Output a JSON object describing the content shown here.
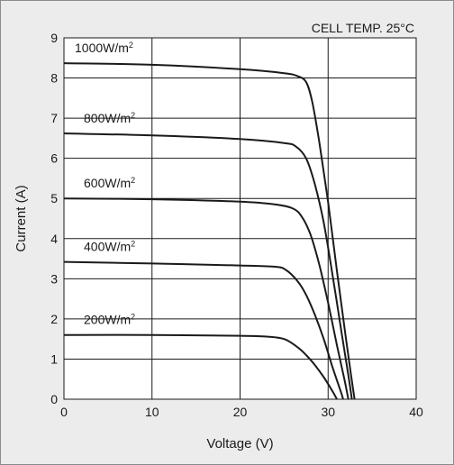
{
  "chart_data": {
    "type": "line",
    "annotation": "CELL TEMP. 25°C",
    "xlabel": "Voltage (V)",
    "ylabel": "Current (A)",
    "xlim": [
      0,
      40
    ],
    "ylim": [
      0,
      9
    ],
    "xticks": [
      0,
      10,
      20,
      30,
      40
    ],
    "yticks": [
      0,
      1,
      2,
      3,
      4,
      5,
      6,
      7,
      8,
      9
    ],
    "grid": true,
    "series": [
      {
        "name": "1000W/m²",
        "label_text": "1000W/m",
        "label_sup": "2",
        "points": [
          [
            0,
            8.37
          ],
          [
            10,
            8.33
          ],
          [
            20,
            8.22
          ],
          [
            25,
            8.12
          ],
          [
            26.5,
            8.05
          ],
          [
            27.5,
            7.9
          ],
          [
            28.2,
            7.4
          ],
          [
            29,
            6.4
          ],
          [
            30,
            4.9
          ],
          [
            31,
            3.2
          ],
          [
            32,
            1.55
          ],
          [
            32.6,
            0.6
          ],
          [
            33,
            0
          ]
        ]
      },
      {
        "name": "800W/m²",
        "label_text": "800W/m",
        "label_sup": "2",
        "points": [
          [
            0,
            6.62
          ],
          [
            10,
            6.57
          ],
          [
            20,
            6.48
          ],
          [
            25,
            6.38
          ],
          [
            26.3,
            6.3
          ],
          [
            27.5,
            6.0
          ],
          [
            28.5,
            5.35
          ],
          [
            29.5,
            4.4
          ],
          [
            30.5,
            3.1
          ],
          [
            31.5,
            1.7
          ],
          [
            32.3,
            0.6
          ],
          [
            32.7,
            0
          ]
        ]
      },
      {
        "name": "600W/m²",
        "label_text": "600W/m",
        "label_sup": "2",
        "points": [
          [
            0,
            5.0
          ],
          [
            10,
            4.98
          ],
          [
            20,
            4.92
          ],
          [
            24,
            4.85
          ],
          [
            26,
            4.75
          ],
          [
            27,
            4.55
          ],
          [
            28,
            4.1
          ],
          [
            29,
            3.35
          ],
          [
            30,
            2.4
          ],
          [
            31,
            1.35
          ],
          [
            31.8,
            0.55
          ],
          [
            32.3,
            0
          ]
        ]
      },
      {
        "name": "400W/m²",
        "label_text": "400W/m",
        "label_sup": "2",
        "points": [
          [
            0,
            3.42
          ],
          [
            10,
            3.38
          ],
          [
            20,
            3.33
          ],
          [
            24,
            3.3
          ],
          [
            25.2,
            3.22
          ],
          [
            26.5,
            2.95
          ],
          [
            27.5,
            2.6
          ],
          [
            28.5,
            2.1
          ],
          [
            29.5,
            1.5
          ],
          [
            30.5,
            0.8
          ],
          [
            31.5,
            0.15
          ],
          [
            31.7,
            0
          ]
        ]
      },
      {
        "name": "200W/m²",
        "label_text": "200W/m",
        "label_sup": "2",
        "points": [
          [
            0,
            1.6
          ],
          [
            10,
            1.6
          ],
          [
            20,
            1.58
          ],
          [
            23,
            1.56
          ],
          [
            25,
            1.5
          ],
          [
            26.5,
            1.3
          ],
          [
            27.5,
            1.1
          ],
          [
            28.5,
            0.85
          ],
          [
            29.5,
            0.55
          ],
          [
            30.5,
            0.2
          ],
          [
            31,
            0
          ]
        ]
      }
    ]
  }
}
